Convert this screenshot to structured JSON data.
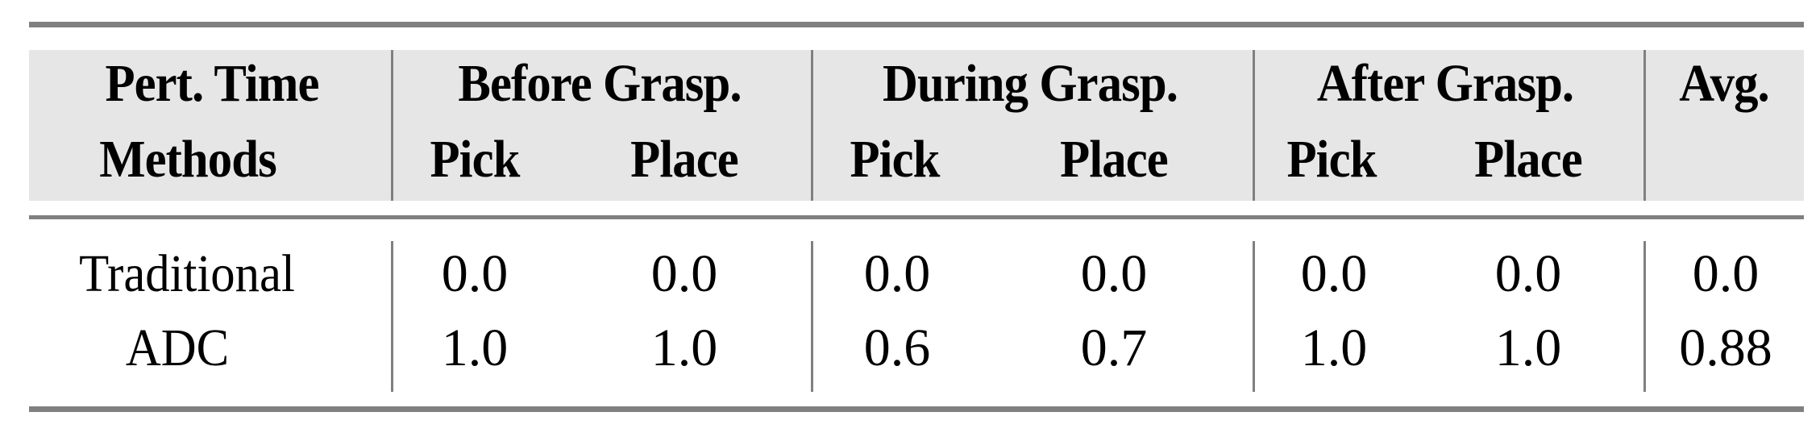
{
  "table": {
    "header_row1": [
      "Pert. Time",
      "Before Grasp.",
      "During Grasp.",
      "After Grasp.",
      "Avg."
    ],
    "header_row2": [
      "Methods",
      "Pick",
      "Place",
      "Pick",
      "Place",
      "Pick",
      "Place",
      ""
    ],
    "rows": [
      {
        "method": "Traditional",
        "values": [
          "0.0",
          "0.0",
          "0.0",
          "0.0",
          "0.0",
          "0.0",
          "0.0"
        ]
      },
      {
        "method": "ADC",
        "values": [
          "1.0",
          "1.0",
          "0.6",
          "0.7",
          "1.0",
          "1.0",
          "0.88"
        ]
      }
    ]
  },
  "colors": {
    "header_bg": "#e6e6e6",
    "rule": "#808080"
  }
}
